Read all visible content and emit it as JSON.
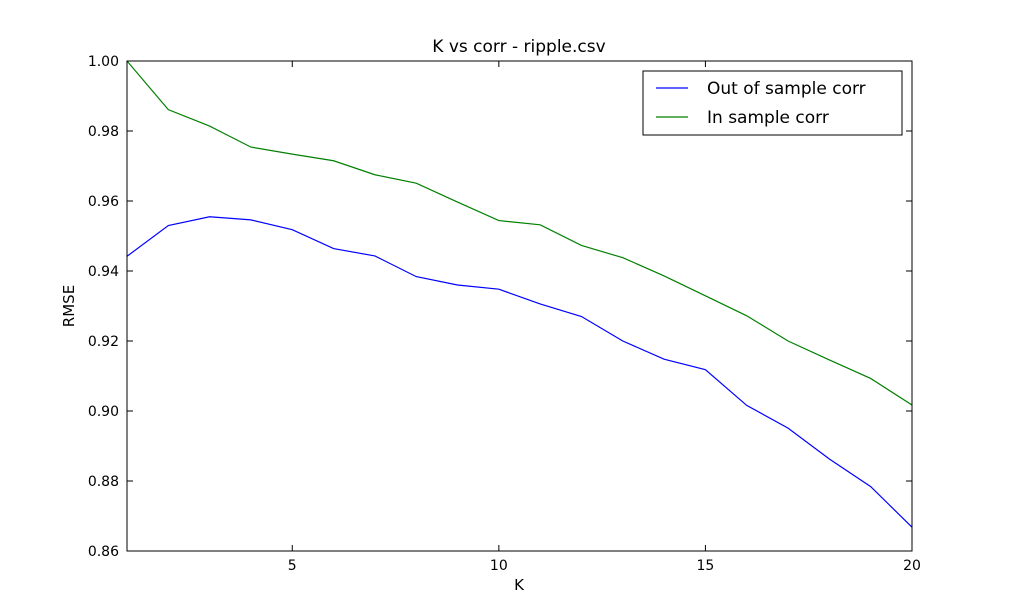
{
  "chart_data": {
    "type": "line",
    "title": "K vs corr - ripple.csv",
    "xlabel": "K",
    "ylabel": "RMSE",
    "xlim": [
      1,
      20
    ],
    "ylim": [
      0.86,
      1.0
    ],
    "x_ticks": [
      5,
      10,
      15,
      20
    ],
    "y_ticks": [
      0.86,
      0.88,
      0.9,
      0.92,
      0.94,
      0.96,
      0.98,
      1.0
    ],
    "x_tick_labels": [
      "5",
      "10",
      "15",
      "20"
    ],
    "y_tick_labels": [
      "0.86",
      "0.88",
      "0.90",
      "0.92",
      "0.94",
      "0.96",
      "0.98",
      "1.00"
    ],
    "grid": false,
    "legend_position": "top-right",
    "x": [
      1,
      2,
      3,
      4,
      5,
      6,
      7,
      8,
      9,
      10,
      11,
      12,
      13,
      14,
      15,
      16,
      17,
      18,
      19,
      20
    ],
    "series": [
      {
        "name": "Out of sample corr",
        "color": "#0000ff",
        "values": [
          0.9442,
          0.953,
          0.9555,
          0.9546,
          0.9518,
          0.9464,
          0.9443,
          0.9384,
          0.936,
          0.9348,
          0.9306,
          0.927,
          0.92,
          0.9148,
          0.9118,
          0.9016,
          0.8951,
          0.8863,
          0.8784,
          0.8668
        ]
      },
      {
        "name": "In sample corr",
        "color": "#008000",
        "values": [
          1.0,
          0.9861,
          0.9814,
          0.9754,
          0.9734,
          0.9715,
          0.9675,
          0.9651,
          0.9597,
          0.9544,
          0.9532,
          0.9473,
          0.9438,
          0.9386,
          0.9329,
          0.9272,
          0.92,
          0.9146,
          0.9093,
          0.9017
        ]
      }
    ]
  }
}
